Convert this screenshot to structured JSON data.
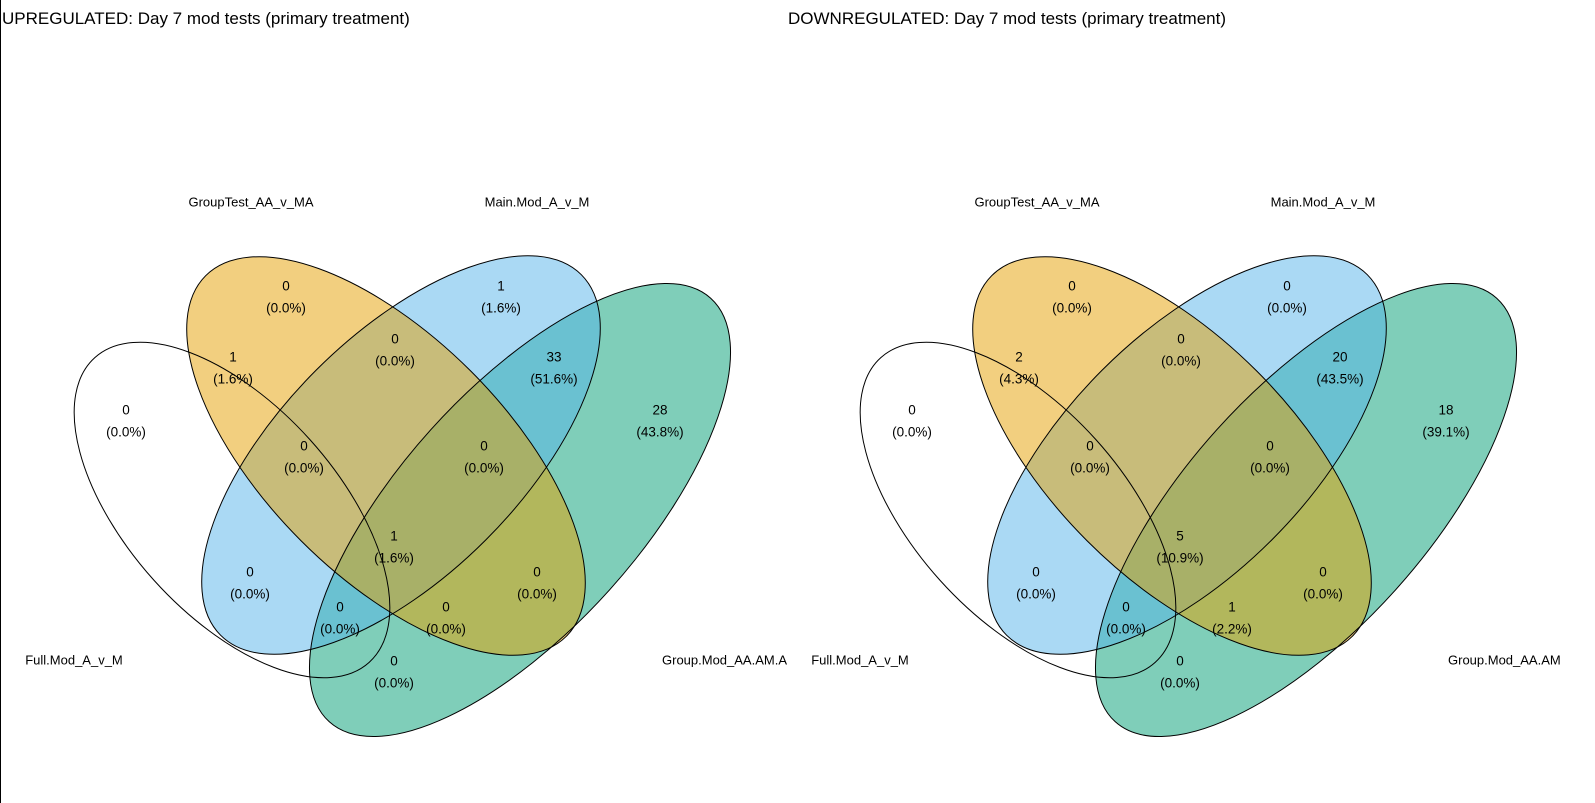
{
  "colors": {
    "set1": "#ffffff",
    "set2": "#E69F00",
    "set3": "#56B4E9",
    "set4": "#009E73",
    "outline": "#000000"
  },
  "panels": [
    {
      "title": "UPREGULATED: Day 7 mod tests (primary treatment)",
      "set_labels": {
        "s1": "Full.Mod_A_v_M",
        "s2": "GroupTest_AA_v_MA",
        "s3": "Main.Mod_A_v_M",
        "s4": "Group.Mod_AA.AM.A"
      },
      "regions": [
        {
          "key": "s1",
          "count": "0",
          "pct": "(0.0%)"
        },
        {
          "key": "s2",
          "count": "0",
          "pct": "(0.0%)"
        },
        {
          "key": "s3",
          "count": "1",
          "pct": "(1.6%)"
        },
        {
          "key": "s4",
          "count": "28",
          "pct": "(43.8%)"
        },
        {
          "key": "s12",
          "count": "1",
          "pct": "(1.6%)"
        },
        {
          "key": "s23",
          "count": "0",
          "pct": "(0.0%)"
        },
        {
          "key": "s34",
          "count": "33",
          "pct": "(51.6%)"
        },
        {
          "key": "s123",
          "count": "0",
          "pct": "(0.0%)"
        },
        {
          "key": "s234",
          "count": "0",
          "pct": "(0.0%)"
        },
        {
          "key": "s1234",
          "count": "1",
          "pct": "(1.6%)"
        },
        {
          "key": "s13",
          "count": "0",
          "pct": "(0.0%)"
        },
        {
          "key": "s24",
          "count": "0",
          "pct": "(0.0%)"
        },
        {
          "key": "s134",
          "count": "0",
          "pct": "(0.0%)"
        },
        {
          "key": "s124",
          "count": "0",
          "pct": "(0.0%)"
        },
        {
          "key": "s14",
          "count": "0",
          "pct": "(0.0%)"
        }
      ]
    },
    {
      "title": "DOWNREGULATED: Day 7 mod tests (primary treatment)",
      "set_labels": {
        "s1": "Full.Mod_A_v_M",
        "s2": "GroupTest_AA_v_MA",
        "s3": "Main.Mod_A_v_M",
        "s4": "Group.Mod_AA.AM"
      },
      "regions": [
        {
          "key": "s1",
          "count": "0",
          "pct": "(0.0%)"
        },
        {
          "key": "s2",
          "count": "0",
          "pct": "(0.0%)"
        },
        {
          "key": "s3",
          "count": "0",
          "pct": "(0.0%)"
        },
        {
          "key": "s4",
          "count": "18",
          "pct": "(39.1%)"
        },
        {
          "key": "s12",
          "count": "2",
          "pct": "(4.3%)"
        },
        {
          "key": "s23",
          "count": "0",
          "pct": "(0.0%)"
        },
        {
          "key": "s34",
          "count": "20",
          "pct": "(43.5%)"
        },
        {
          "key": "s123",
          "count": "0",
          "pct": "(0.0%)"
        },
        {
          "key": "s234",
          "count": "0",
          "pct": "(0.0%)"
        },
        {
          "key": "s1234",
          "count": "5",
          "pct": "(10.9%)"
        },
        {
          "key": "s13",
          "count": "0",
          "pct": "(0.0%)"
        },
        {
          "key": "s24",
          "count": "0",
          "pct": "(0.0%)"
        },
        {
          "key": "s134",
          "count": "0",
          "pct": "(0.0%)"
        },
        {
          "key": "s124",
          "count": "1",
          "pct": "(2.2%)"
        },
        {
          "key": "s14",
          "count": "0",
          "pct": "(0.0%)"
        }
      ]
    }
  ]
}
